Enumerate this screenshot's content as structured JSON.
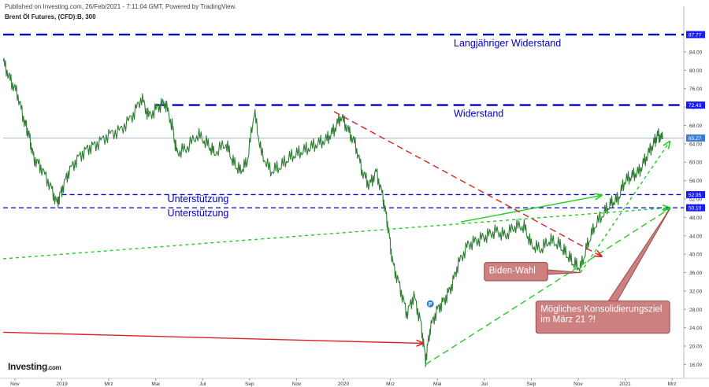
{
  "header": {
    "published": "Published on Investing.com, 26/Feb/2021 - 7:11:04 GMT, Powered by TradingView.",
    "instrument": "Brent Öl Futures, (CFD):B, 300"
  },
  "logo": {
    "name": "Investing",
    "domain": ".com"
  },
  "colors": {
    "price": "#2e7d32",
    "level": "#0000cc",
    "trend_green": "#22cc22",
    "trend_red": "#dd2222",
    "callout_fill": "#cd8080",
    "callout_stroke": "#9e4848"
  },
  "chart_data": {
    "type": "line",
    "ylim": [
      13.5,
      90.5
    ],
    "xlim": [
      0,
      29
    ],
    "x_ticks": [
      {
        "x": 0.5,
        "label": "Nov"
      },
      {
        "x": 2.5,
        "label": "2019"
      },
      {
        "x": 4.5,
        "label": "Mrz"
      },
      {
        "x": 6.5,
        "label": "Mai"
      },
      {
        "x": 8.5,
        "label": "Jul"
      },
      {
        "x": 10.5,
        "label": "Sep"
      },
      {
        "x": 12.5,
        "label": "Nov"
      },
      {
        "x": 14.5,
        "label": "2020"
      },
      {
        "x": 16.5,
        "label": "Mrz"
      },
      {
        "x": 18.5,
        "label": "Mai"
      },
      {
        "x": 20.5,
        "label": "Jul"
      },
      {
        "x": 22.5,
        "label": "Sep"
      },
      {
        "x": 24.5,
        "label": "Nov"
      },
      {
        "x": 26.5,
        "label": "2021"
      },
      {
        "x": 28.5,
        "label": "Mrz"
      }
    ],
    "y_ticks": [
      "16.00",
      "20.00",
      "24.00",
      "28.00",
      "32.00",
      "36.00",
      "40.00",
      "44.00",
      "48.00",
      "52.00",
      "56.00",
      "60.00",
      "64.00",
      "68.00",
      "72.00",
      "76.00",
      "80.00",
      "84.00"
    ],
    "y_tick_values": [
      16,
      20,
      24,
      28,
      32,
      36,
      40,
      44,
      48,
      52,
      56,
      60,
      64,
      68,
      72,
      76,
      80,
      84
    ],
    "level_badges": [
      {
        "value": 87.77,
        "label": "87.77"
      },
      {
        "value": 72.43,
        "label": "72.43"
      },
      {
        "value": 65.27,
        "label": "65.27"
      },
      {
        "value": 52.95,
        "label": "52.95"
      },
      {
        "value": 50.1,
        "label": "50.10"
      }
    ],
    "price_series": [
      [
        0,
        82
      ],
      [
        0.3,
        78
      ],
      [
        0.6,
        75
      ],
      [
        0.9,
        69
      ],
      [
        1.1,
        66
      ],
      [
        1.3,
        61
      ],
      [
        1.6,
        59
      ],
      [
        2.0,
        55
      ],
      [
        2.3,
        51
      ],
      [
        2.5,
        54
      ],
      [
        2.8,
        58
      ],
      [
        3.2,
        61
      ],
      [
        3.6,
        63
      ],
      [
        4.0,
        64
      ],
      [
        4.5,
        66
      ],
      [
        5.0,
        67
      ],
      [
        5.5,
        70
      ],
      [
        5.9,
        74
      ],
      [
        6.2,
        70
      ],
      [
        6.6,
        72
      ],
      [
        6.9,
        73
      ],
      [
        7.2,
        68
      ],
      [
        7.4,
        62
      ],
      [
        7.8,
        63
      ],
      [
        8.3,
        66
      ],
      [
        8.7,
        64
      ],
      [
        9.0,
        62
      ],
      [
        9.5,
        64
      ],
      [
        9.8,
        60
      ],
      [
        10.1,
        58
      ],
      [
        10.4,
        60
      ],
      [
        10.7,
        71
      ],
      [
        11.0,
        62
      ],
      [
        11.4,
        58
      ],
      [
        11.8,
        59
      ],
      [
        12.2,
        61
      ],
      [
        12.6,
        62
      ],
      [
        13.0,
        63
      ],
      [
        13.4,
        64
      ],
      [
        13.8,
        65
      ],
      [
        14.1,
        67
      ],
      [
        14.4,
        70
      ],
      [
        14.7,
        67
      ],
      [
        15.0,
        64
      ],
      [
        15.3,
        58
      ],
      [
        15.6,
        55
      ],
      [
        15.9,
        58
      ],
      [
        16.2,
        52
      ],
      [
        16.4,
        46
      ],
      [
        16.6,
        38
      ],
      [
        16.9,
        33
      ],
      [
        17.2,
        27
      ],
      [
        17.5,
        31
      ],
      [
        17.8,
        25
      ],
      [
        18.0,
        17
      ],
      [
        18.2,
        24
      ],
      [
        18.5,
        28
      ],
      [
        18.8,
        30
      ],
      [
        19.1,
        33
      ],
      [
        19.4,
        38
      ],
      [
        19.8,
        42
      ],
      [
        20.2,
        43
      ],
      [
        20.6,
        44
      ],
      [
        21.0,
        45
      ],
      [
        21.4,
        44
      ],
      [
        21.8,
        46
      ],
      [
        22.2,
        46
      ],
      [
        22.5,
        42
      ],
      [
        22.9,
        41
      ],
      [
        23.3,
        43
      ],
      [
        23.7,
        42
      ],
      [
        24.0,
        40
      ],
      [
        24.3,
        38
      ],
      [
        24.6,
        37
      ],
      [
        24.9,
        42
      ],
      [
        25.2,
        46
      ],
      [
        25.6,
        49
      ],
      [
        25.9,
        51
      ],
      [
        26.2,
        52
      ],
      [
        26.5,
        56
      ],
      [
        26.8,
        57
      ],
      [
        27.1,
        58
      ],
      [
        27.4,
        61
      ],
      [
        27.7,
        64
      ],
      [
        27.9,
        66
      ],
      [
        28.1,
        65
      ]
    ],
    "horizontal_levels": [
      {
        "name": "Langjähriger Widerstand",
        "value": 87.77,
        "style": "dashed-thick"
      },
      {
        "name": "Widerstand",
        "value": 72.43,
        "style": "dashed-thick",
        "x_start": 6.5
      },
      {
        "name": "current",
        "value": 65.27,
        "style": "thin"
      },
      {
        "name": "Unterstützung",
        "value": 52.95,
        "style": "dashed",
        "x_start": 2.5
      },
      {
        "name": "Unterstützung",
        "value": 50.1,
        "style": "dashed"
      }
    ],
    "trendlines": [
      {
        "color": "green",
        "dash": "dotted",
        "from": [
          0,
          39
        ],
        "to": [
          28.4,
          50.1
        ],
        "arrow": true
      },
      {
        "color": "green",
        "dash": "dashed",
        "from": [
          18,
          16
        ],
        "to": [
          28.4,
          49.9
        ],
        "arrow": true
      },
      {
        "color": "green",
        "dash": "dotted",
        "from": [
          24.6,
          36
        ],
        "to": [
          28.4,
          64.5
        ],
        "arrow": true
      },
      {
        "color": "green",
        "dash": "solid",
        "from": [
          19.5,
          47
        ],
        "to": [
          25.5,
          52.8
        ],
        "arrow": true
      },
      {
        "color": "red",
        "dash": "dashed",
        "from": [
          14.1,
          71
        ],
        "to": [
          25.5,
          39.5
        ],
        "arrow": true
      },
      {
        "color": "red",
        "dash": "solid",
        "from": [
          0,
          23
        ],
        "to": [
          17.9,
          20.6
        ],
        "arrow": true
      }
    ],
    "annotations": [
      {
        "text": "Langjähriger Widerstand",
        "x": 19.2,
        "y": 85.2
      },
      {
        "text": "Widerstand",
        "x": 19.2,
        "y": 69.9
      },
      {
        "text": "Unterstützung",
        "x": 7.0,
        "y": 51.3
      },
      {
        "text": "Unterstützung",
        "x": 7.0,
        "y": 48.2
      }
    ],
    "callouts": [
      {
        "text": "Biden-Wahl",
        "box": [
          20.5,
          34.2,
          23.2,
          38.2
        ],
        "pointer": [
          24.6,
          36
        ]
      },
      {
        "lines": [
          "Mögliches Konsolidierungsziel",
          "im März 21 ?!"
        ],
        "box": [
          22.7,
          22.8,
          28.4,
          29.8
        ],
        "pointer": [
          28.4,
          49.8
        ]
      }
    ],
    "marker": {
      "x": 18.2,
      "y": 29.2,
      "label": "P"
    }
  }
}
